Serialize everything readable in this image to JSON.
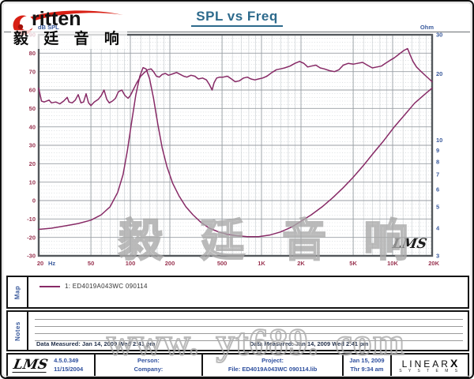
{
  "header": {
    "title": "SPL vs Freq",
    "logo_word": "ritten",
    "logo_cn": "毅 廷 音 响"
  },
  "watermarks": {
    "chart_cn": "毅 廷 音 响",
    "site": "www. yt689. com",
    "lms_script": "LMS"
  },
  "chart_data": {
    "type": "line",
    "title": "SPL vs Freq",
    "grid": "log-x, major 10 dB / minor 2 dB horizontal",
    "legend_position": "map box below chart",
    "curve_color": "#872a66",
    "x_axis": {
      "scale": "log",
      "min": 20,
      "max": 20000,
      "unit": "Hz",
      "tick_values": [
        20,
        50,
        100,
        200,
        500,
        1000,
        2000,
        5000,
        10000,
        20000
      ],
      "tick_labels": [
        "20",
        "50",
        "100",
        "200",
        "500",
        "1K",
        "2K",
        "5K",
        "10K",
        "20K"
      ]
    },
    "y_left": {
      "label": "dB SPL",
      "scale": "linear",
      "min": -30,
      "max": 90,
      "major_step": 10,
      "minor_step": 2
    },
    "y_right": {
      "label": "Ohm",
      "scale": "log",
      "min": 3,
      "max": 30,
      "ticks": [
        30,
        20,
        10,
        9,
        8,
        7,
        6,
        5,
        4,
        3
      ]
    },
    "series": [
      {
        "name": "SPL — 1: ED4019A043WC 090114",
        "axis": "left",
        "points": [
          [
            20,
            61
          ],
          [
            21,
            54
          ],
          [
            22,
            53.5
          ],
          [
            24,
            54.5
          ],
          [
            25,
            53
          ],
          [
            27,
            53.5
          ],
          [
            29,
            52.5
          ],
          [
            31,
            54
          ],
          [
            33,
            56
          ],
          [
            34,
            53.5
          ],
          [
            36,
            53
          ],
          [
            38,
            54.5
          ],
          [
            40,
            57.5
          ],
          [
            42,
            53
          ],
          [
            44,
            53.5
          ],
          [
            46,
            58
          ],
          [
            48,
            53
          ],
          [
            50,
            51.5
          ],
          [
            53,
            53.5
          ],
          [
            57,
            55
          ],
          [
            60,
            57
          ],
          [
            63,
            60
          ],
          [
            66,
            55
          ],
          [
            69,
            53
          ],
          [
            73,
            54
          ],
          [
            77,
            55.5
          ],
          [
            81,
            59
          ],
          [
            86,
            60
          ],
          [
            91,
            57
          ],
          [
            96,
            55.5
          ],
          [
            100,
            57
          ],
          [
            105,
            60
          ],
          [
            112,
            64
          ],
          [
            120,
            67.5
          ],
          [
            128,
            69.5
          ],
          [
            136,
            71
          ],
          [
            144,
            71.5
          ],
          [
            150,
            70
          ],
          [
            158,
            67.5
          ],
          [
            166,
            67
          ],
          [
            175,
            68.5
          ],
          [
            185,
            69
          ],
          [
            195,
            68
          ],
          [
            205,
            68.5
          ],
          [
            215,
            69
          ],
          [
            225,
            69.5
          ],
          [
            240,
            68.5
          ],
          [
            255,
            67.5
          ],
          [
            270,
            67
          ],
          [
            290,
            68
          ],
          [
            310,
            67.5
          ],
          [
            330,
            66
          ],
          [
            355,
            66.5
          ],
          [
            380,
            65.5
          ],
          [
            400,
            63
          ],
          [
            420,
            60
          ],
          [
            435,
            64
          ],
          [
            455,
            66.5
          ],
          [
            480,
            67
          ],
          [
            510,
            67
          ],
          [
            550,
            67.5
          ],
          [
            590,
            66
          ],
          [
            630,
            64.5
          ],
          [
            680,
            65
          ],
          [
            730,
            66.5
          ],
          [
            780,
            67
          ],
          [
            830,
            66
          ],
          [
            890,
            65.5
          ],
          [
            950,
            66
          ],
          [
            1020,
            66.5
          ],
          [
            1100,
            67.5
          ],
          [
            1200,
            69.5
          ],
          [
            1300,
            71
          ],
          [
            1400,
            71.5
          ],
          [
            1500,
            72
          ],
          [
            1650,
            73
          ],
          [
            1800,
            74.5
          ],
          [
            1950,
            75.5
          ],
          [
            2100,
            74.5
          ],
          [
            2250,
            72.5
          ],
          [
            2400,
            73
          ],
          [
            2600,
            73.5
          ],
          [
            2800,
            72
          ],
          [
            3000,
            71.5
          ],
          [
            3300,
            70.5
          ],
          [
            3600,
            70
          ],
          [
            3900,
            71
          ],
          [
            4200,
            73.5
          ],
          [
            4600,
            74.5
          ],
          [
            5000,
            74
          ],
          [
            5400,
            74.5
          ],
          [
            5900,
            75
          ],
          [
            6400,
            73.5
          ],
          [
            7000,
            72
          ],
          [
            7600,
            72.5
          ],
          [
            8200,
            73
          ],
          [
            8800,
            74.5
          ],
          [
            9500,
            76
          ],
          [
            10300,
            77.5
          ],
          [
            11200,
            79.5
          ],
          [
            12200,
            81.5
          ],
          [
            13000,
            82.5
          ],
          [
            13600,
            79
          ],
          [
            14300,
            75.5
          ],
          [
            15200,
            72.5
          ],
          [
            16500,
            70
          ],
          [
            18000,
            67.5
          ],
          [
            20000,
            64.5
          ]
        ]
      },
      {
        "name": "Impedance — 1: ED4019A043WC 090114",
        "axis": "right",
        "points": [
          [
            20,
            3.95
          ],
          [
            25,
            4.0
          ],
          [
            32,
            4.1
          ],
          [
            40,
            4.2
          ],
          [
            50,
            4.35
          ],
          [
            60,
            4.6
          ],
          [
            70,
            5.0
          ],
          [
            80,
            5.8
          ],
          [
            88,
            7.0
          ],
          [
            95,
            9.0
          ],
          [
            102,
            12.0
          ],
          [
            110,
            16.0
          ],
          [
            118,
            19.5
          ],
          [
            125,
            21.3
          ],
          [
            132,
            21.0
          ],
          [
            140,
            19.0
          ],
          [
            150,
            15.5
          ],
          [
            162,
            11.8
          ],
          [
            175,
            9.2
          ],
          [
            190,
            7.6
          ],
          [
            210,
            6.4
          ],
          [
            235,
            5.6
          ],
          [
            265,
            5.0
          ],
          [
            300,
            4.6
          ],
          [
            345,
            4.25
          ],
          [
            400,
            4.0
          ],
          [
            470,
            3.85
          ],
          [
            550,
            3.75
          ],
          [
            650,
            3.7
          ],
          [
            780,
            3.66
          ],
          [
            950,
            3.66
          ],
          [
            1150,
            3.72
          ],
          [
            1400,
            3.85
          ],
          [
            1700,
            4.05
          ],
          [
            2000,
            4.3
          ],
          [
            2400,
            4.6
          ],
          [
            2900,
            5.0
          ],
          [
            3500,
            5.5
          ],
          [
            4200,
            6.1
          ],
          [
            5000,
            6.8
          ],
          [
            6000,
            7.7
          ],
          [
            7200,
            8.8
          ],
          [
            8600,
            10.0
          ],
          [
            10300,
            11.5
          ],
          [
            12300,
            13.0
          ],
          [
            14700,
            14.7
          ],
          [
            17300,
            16.0
          ],
          [
            20000,
            17.2
          ]
        ]
      }
    ]
  },
  "map": {
    "label": "Map",
    "legend": "1: ED4019A043WC  090114"
  },
  "notes": {
    "label": "Notes",
    "data_measured_left": "Data Measured: Jan 14, 2009  Wed 2:41 pm",
    "data_measured_right": "Data Measured: Jan 14, 2009  Wed 2:41 pm"
  },
  "footer": {
    "lms_logo": "LMS",
    "version": "4.5.0.349",
    "version_date": "11/15/2004",
    "person_label": "Person:",
    "company_label": "Company:",
    "project_label": "Project:",
    "file_label": "File: ED4019A043WC 090114.lib",
    "date": "Jan 15, 2009",
    "time": "Thr  9:34 am",
    "brand": "LINEAR",
    "brand_x": "X",
    "brand_sub": "S Y S T E M S"
  },
  "colors": {
    "curve": "#872a66",
    "title": "#2d6a8c",
    "axis_left_x_labels": "#993350",
    "axis_right_labels": "#3a5a9c",
    "footer_text": "#2e4f9e",
    "logo_red": "#d81f14"
  }
}
